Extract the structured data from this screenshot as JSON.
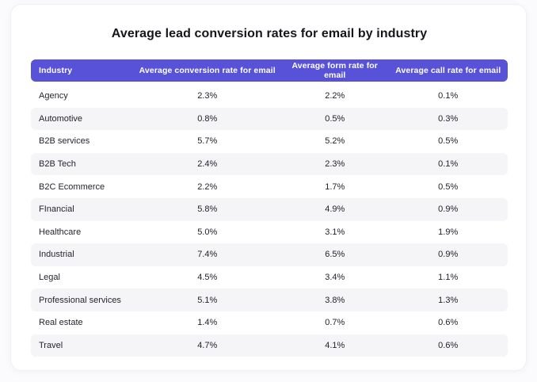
{
  "chart_data": {
    "type": "table",
    "title": "Average lead conversion rates for email by industry",
    "columns": [
      "Industry",
      "Average conversion rate for email",
      "Average form rate for email",
      "Average call rate for email"
    ],
    "rows": [
      [
        "Agency",
        "2.3%",
        "2.2%",
        "0.1%"
      ],
      [
        "Automotive",
        "0.8%",
        "0.5%",
        "0.3%"
      ],
      [
        "B2B services",
        "5.7%",
        "5.2%",
        "0.5%"
      ],
      [
        "B2B Tech",
        "2.4%",
        "2.3%",
        "0.1%"
      ],
      [
        "B2C Ecommerce",
        "2.2%",
        "1.7%",
        "0.5%"
      ],
      [
        "FInancial",
        "5.8%",
        "4.9%",
        "0.9%"
      ],
      [
        "Healthcare",
        "5.0%",
        "3.1%",
        "1.9%"
      ],
      [
        "Industrial",
        "7.4%",
        "6.5%",
        "0.9%"
      ],
      [
        "Legal",
        "4.5%",
        "3.4%",
        "1.1%"
      ],
      [
        "Professional services",
        "5.1%",
        "3.8%",
        "1.3%"
      ],
      [
        "Real estate",
        "1.4%",
        "0.7%",
        "0.6%"
      ],
      [
        "Travel",
        "4.7%",
        "4.1%",
        "0.6%"
      ]
    ],
    "layout": {
      "header_alignment": [
        "left",
        "center",
        "center",
        "center"
      ],
      "row_striping": "even rows shaded"
    }
  },
  "colors": {
    "header_background": "#5852d8",
    "header_text": "#ffffff",
    "row_stripe": "#f5f5f8",
    "title_text": "#14161b",
    "cell_text": "#20242b",
    "card_background": "#ffffff",
    "card_border": "#eef0f5",
    "page_background": "#fbfbfd"
  }
}
